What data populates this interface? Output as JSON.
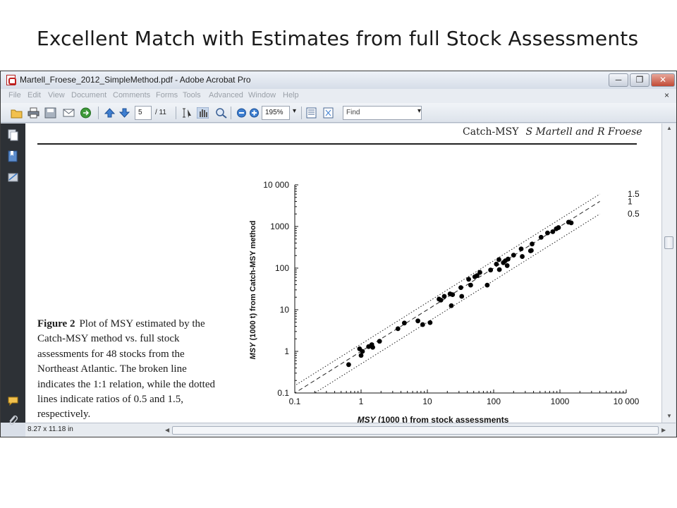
{
  "slide_title": "Excellent Match with Estimates from full Stock Assessments",
  "window": {
    "title": "Martell_Froese_2012_SimpleMethod.pdf - Adobe Acrobat Pro",
    "minimize": "─",
    "restore": "❐",
    "close": "✕"
  },
  "menu": {
    "items": [
      "File",
      "Edit",
      "View",
      "Document",
      "Comments",
      "Forms",
      "Tools",
      "Advanced",
      "Window",
      "Help"
    ],
    "doc_close": "×"
  },
  "toolbar": {
    "page_current": "5",
    "page_total": "/ 11",
    "zoom": "195%",
    "find_placeholder": "Find"
  },
  "page": {
    "header_title": "Catch-MSY",
    "header_authors": "S Martell and R Froese",
    "caption_label": "Figure 2",
    "caption_text": "Plot of MSY estimated by the Catch-MSY method vs. full stock assessments for 48 stocks from the Northeast Atlantic. The broken line indicates the 1:1 relation, while the dotted lines indicate ratios of 0.5 and 1.5, respectively."
  },
  "status": {
    "page_size": "8.27 x 11.18 in"
  },
  "chart_data": {
    "type": "scatter",
    "xscale": "log",
    "yscale": "log",
    "xlim": [
      0.1,
      10000
    ],
    "ylim": [
      0.1,
      10000
    ],
    "x_ticks": [
      {
        "value": 0.1,
        "label": "0.1"
      },
      {
        "value": 1,
        "label": "1"
      },
      {
        "value": 10,
        "label": "10"
      },
      {
        "value": 100,
        "label": "100"
      },
      {
        "value": 1000,
        "label": "1000"
      },
      {
        "value": 10000,
        "label": "10 000"
      }
    ],
    "y_ticks": [
      {
        "value": 0.1,
        "label": "0.1"
      },
      {
        "value": 1,
        "label": "1"
      },
      {
        "value": 10,
        "label": "10"
      },
      {
        "value": 100,
        "label": "100"
      },
      {
        "value": 1000,
        "label": "1000"
      },
      {
        "value": 10000,
        "label": "10 000"
      }
    ],
    "xlabel_italic": "MSY",
    "xlabel_rest": " (1000 t) from stock assessments",
    "ylabel_italic": "MSY",
    "ylabel_rest": " (1000 t) from Catch-MSY method",
    "lines": [
      {
        "ratio": 1.5,
        "label": "1.5",
        "style": "dotted"
      },
      {
        "ratio": 1,
        "label": "1",
        "style": "dashed"
      },
      {
        "ratio": 0.5,
        "label": "0.5",
        "style": "dotted"
      }
    ],
    "points": [
      [
        0.65,
        0.48
      ],
      [
        0.95,
        1.15
      ],
      [
        1.0,
        0.8
      ],
      [
        1.05,
        1.0
      ],
      [
        1.3,
        1.3
      ],
      [
        1.45,
        1.45
      ],
      [
        1.5,
        1.25
      ],
      [
        1.9,
        1.75
      ],
      [
        3.6,
        3.5
      ],
      [
        4.5,
        4.8
      ],
      [
        7.2,
        5.4
      ],
      [
        8.5,
        4.4
      ],
      [
        11,
        4.9
      ],
      [
        15,
        18
      ],
      [
        18,
        21
      ],
      [
        22,
        24
      ],
      [
        23,
        12.5
      ],
      [
        24,
        23
      ],
      [
        32,
        34
      ],
      [
        33,
        21
      ],
      [
        42,
        54
      ],
      [
        45,
        39
      ],
      [
        52,
        62
      ],
      [
        56,
        66
      ],
      [
        62,
        79
      ],
      [
        80,
        39
      ],
      [
        110,
        125
      ],
      [
        120,
        160
      ],
      [
        122,
        92
      ],
      [
        140,
        135
      ],
      [
        150,
        150
      ],
      [
        160,
        115
      ],
      [
        165,
        165
      ],
      [
        200,
        205
      ],
      [
        260,
        290
      ],
      [
        270,
        190
      ],
      [
        360,
        260
      ],
      [
        370,
        265
      ],
      [
        380,
        380
      ],
      [
        520,
        550
      ],
      [
        650,
        700
      ],
      [
        780,
        750
      ],
      [
        880,
        880
      ],
      [
        950,
        940
      ],
      [
        1350,
        1270
      ],
      [
        1480,
        1220
      ],
      [
        90,
        90
      ],
      [
        16,
        17
      ]
    ]
  }
}
